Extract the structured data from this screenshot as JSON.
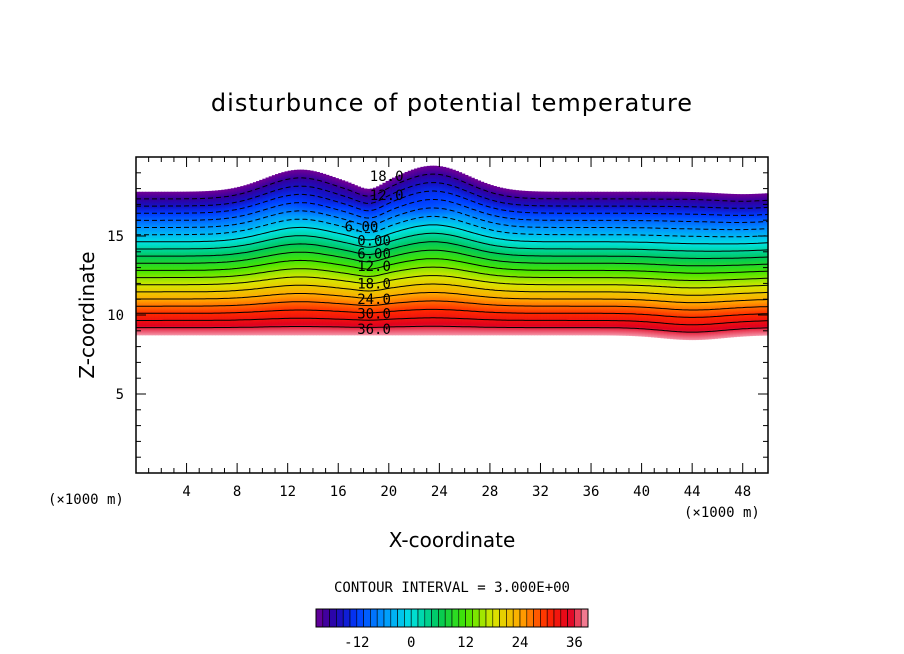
{
  "chart_data": {
    "type": "contour",
    "title": "disturbunce of potential temperature",
    "xlabel": "X-coordinate",
    "ylabel": "Z-coordinate",
    "x_unit": "(×1000 m)",
    "y_unit": "(×1000 m)",
    "xlim": [
      0,
      50
    ],
    "ylim": [
      0,
      20
    ],
    "x_ticks": [
      4,
      8,
      12,
      16,
      20,
      24,
      28,
      32,
      36,
      40,
      44,
      48
    ],
    "y_ticks": [
      5,
      10,
      15
    ],
    "contour_interval_label": "CONTOUR INTERVAL = 3.000E+00",
    "contour_interval": 3.0,
    "value_range": [
      -21,
      39
    ],
    "layer": {
      "z_bottom": 8.75,
      "z_top": 17.8
    },
    "contour_labels": [
      {
        "text": "18.0",
        "x": 18.5,
        "z": 18.8
      },
      {
        "text": "12.0",
        "x": 18.5,
        "z": 17.6
      },
      {
        "text": "6.00",
        "x": 16.5,
        "z": 15.6
      },
      {
        "text": "0.00",
        "x": 17.5,
        "z": 14.7
      },
      {
        "text": "6.00",
        "x": 17.5,
        "z": 13.9
      },
      {
        "text": "12.0",
        "x": 17.5,
        "z": 13.1
      },
      {
        "text": "18.0",
        "x": 17.5,
        "z": 12.0
      },
      {
        "text": "24.0",
        "x": 17.5,
        "z": 11.0
      },
      {
        "text": "30.0",
        "x": 17.5,
        "z": 10.1
      },
      {
        "text": "36.0",
        "x": 17.5,
        "z": 9.1
      }
    ],
    "colorbar": {
      "min": -21,
      "max": 39,
      "tick_values": [
        -12,
        0,
        12,
        24,
        36
      ],
      "tick_labels": [
        "-12",
        "0",
        "12",
        "24",
        "36"
      ]
    }
  }
}
